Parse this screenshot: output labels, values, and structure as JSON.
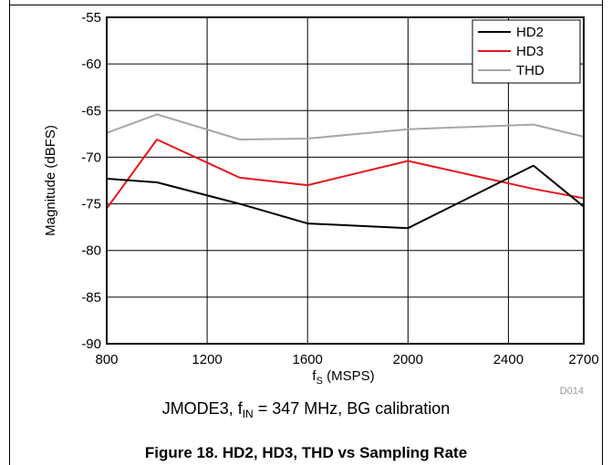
{
  "chart_data": {
    "type": "line",
    "xlabel": "fS (MSPS)",
    "xlabel_main": "f",
    "xlabel_sub": "S",
    "xlabel_rest": " (MSPS)",
    "ylabel": "Magnitude (dBFS)",
    "xlim": [
      800,
      2700
    ],
    "ylim": [
      -90,
      -55
    ],
    "x_ticks": [
      "800",
      "1200",
      "1600",
      "2000",
      "2400",
      "2700"
    ],
    "y_ticks": [
      "-55",
      "-60",
      "-65",
      "-70",
      "-75",
      "-80",
      "-85",
      "-90"
    ],
    "grid": true,
    "legend_position": "top-right",
    "series": [
      {
        "name": "HD2",
        "color": "#000000",
        "x": [
          800,
          1000,
          1330,
          1600,
          2000,
          2500,
          2700
        ],
        "y": [
          -72.3,
          -72.7,
          -75.0,
          -77.1,
          -77.6,
          -70.9,
          -75.3
        ]
      },
      {
        "name": "HD3",
        "color": "#e8141b",
        "x": [
          800,
          1000,
          1330,
          1600,
          2000,
          2500,
          2700
        ],
        "y": [
          -75.5,
          -68.1,
          -72.2,
          -73.0,
          -70.4,
          -73.4,
          -74.4
        ]
      },
      {
        "name": "THD",
        "color": "#a6a6a6",
        "x": [
          800,
          1000,
          1330,
          1600,
          2000,
          2500,
          2700
        ],
        "y": [
          -67.4,
          -65.4,
          -68.1,
          -68.0,
          -67.0,
          -66.5,
          -67.8
        ]
      }
    ],
    "code_label": "D014"
  },
  "caption": {
    "prefix": "JMODE3, f",
    "sub": "IN",
    "suffix": " = 347 MHz, BG calibration"
  },
  "figure_title": "Figure 18. HD2, HD3, THD vs Sampling Rate"
}
